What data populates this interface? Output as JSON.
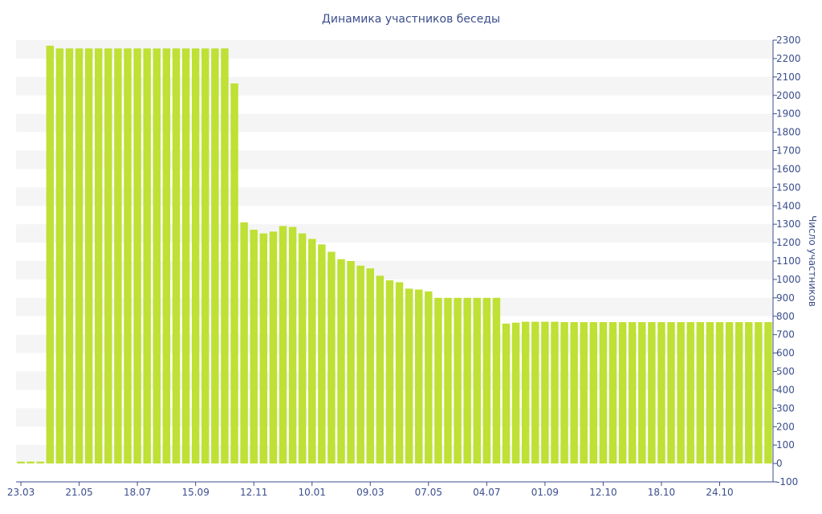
{
  "chart_data": {
    "type": "bar",
    "title": "Динамика участников беседы",
    "xlabel": "",
    "ylabel": "Число участников",
    "ylim": [
      -100,
      2300
    ],
    "y_ticks": [
      -100,
      0,
      100,
      200,
      300,
      400,
      500,
      600,
      700,
      800,
      900,
      1000,
      1100,
      1200,
      1300,
      1400,
      1500,
      1600,
      1700,
      1800,
      1900,
      2000,
      2100,
      2200,
      2300
    ],
    "x_tick_labels": [
      "23.03",
      "21.05",
      "18.07",
      "15.09",
      "12.11",
      "10.01",
      "09.03",
      "07.05",
      "04.07",
      "01.09",
      "12.10",
      "18.10",
      "24.10"
    ],
    "x_tick_index": [
      0,
      6,
      12,
      18,
      24,
      30,
      36,
      42,
      48,
      54,
      60,
      66,
      72
    ],
    "grid": true,
    "bar_color": "#bfe034",
    "band_color": "#f5f5f5",
    "values": [
      10,
      10,
      10,
      2270,
      2255,
      2255,
      2255,
      2255,
      2255,
      2255,
      2255,
      2255,
      2255,
      2255,
      2255,
      2255,
      2255,
      2255,
      2255,
      2255,
      2255,
      2255,
      2065,
      1310,
      1270,
      1250,
      1260,
      1290,
      1285,
      1250,
      1220,
      1190,
      1150,
      1110,
      1100,
      1075,
      1060,
      1020,
      995,
      985,
      950,
      945,
      935,
      900,
      900,
      900,
      900,
      900,
      900,
      900,
      760,
      765,
      770,
      770,
      770,
      770,
      768,
      768,
      768,
      768,
      768,
      768,
      768,
      768,
      768,
      768,
      768,
      768,
      768,
      768,
      768,
      768,
      768,
      768,
      768,
      768,
      768,
      768
    ]
  }
}
